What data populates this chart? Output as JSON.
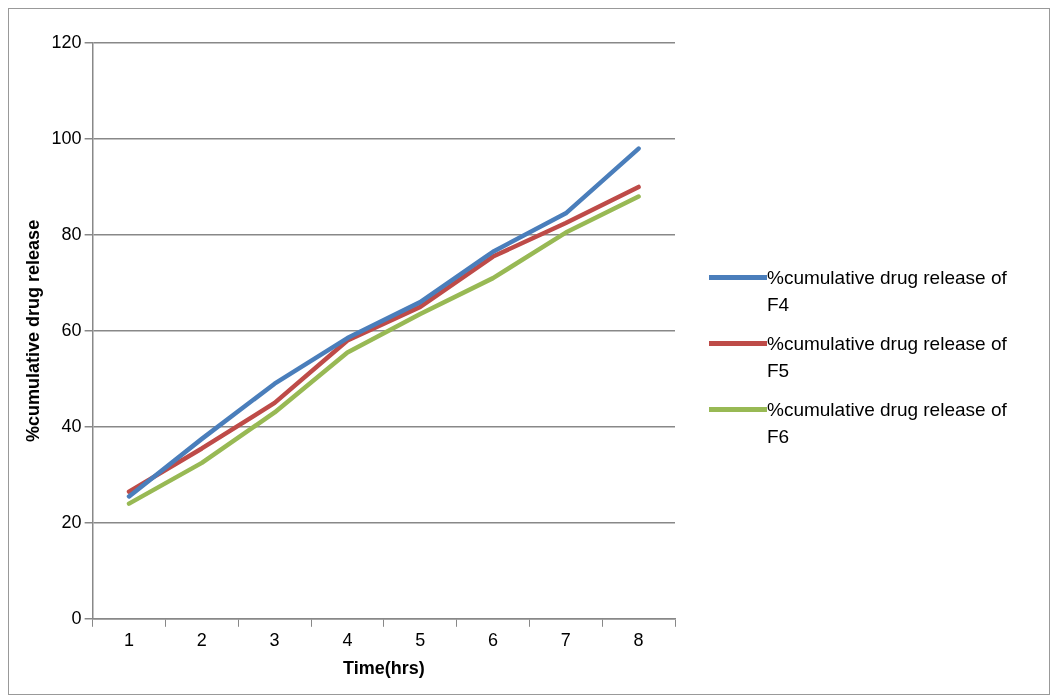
{
  "chart_data": {
    "type": "line",
    "xlabel": "Time(hrs)",
    "ylabel": "%cumulative drug release",
    "categories": [
      "1",
      "2",
      "3",
      "4",
      "5",
      "6",
      "7",
      "8"
    ],
    "ylim": [
      0,
      120
    ],
    "yticks": [
      0,
      20,
      40,
      60,
      80,
      100,
      120
    ],
    "grid": "y",
    "legend": "right",
    "marker": "none",
    "line_style": "solid",
    "series": [
      {
        "name": "%cumulative drug release of F4",
        "color": "#4a7ebb",
        "values": [
          25.5,
          37.5,
          49,
          58.5,
          66,
          76.5,
          84.5,
          98
        ]
      },
      {
        "name": "%cumulative drug release of F5",
        "color": "#be4b48",
        "values": [
          26.5,
          35.5,
          45,
          58,
          65,
          75.5,
          82.5,
          90
        ]
      },
      {
        "name": "%cumulative drug release of F6",
        "color": "#98b954",
        "values": [
          24,
          32.5,
          43,
          55.5,
          63.5,
          71,
          80.5,
          88
        ]
      }
    ]
  }
}
